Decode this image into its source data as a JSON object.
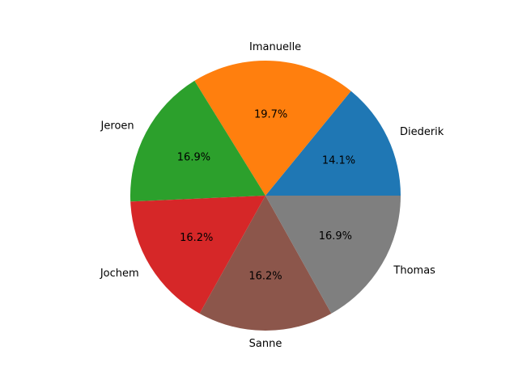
{
  "chart_data": {
    "type": "pie",
    "title": "",
    "start_angle_deg": 0,
    "direction": "counterclockwise",
    "slices": [
      {
        "label": "Diederik",
        "value": 14.1,
        "pct_text": "14.1%",
        "color": "#1f77b4"
      },
      {
        "label": "Imanuelle",
        "value": 19.7,
        "pct_text": "19.7%",
        "color": "#ff7f0e"
      },
      {
        "label": "Jeroen",
        "value": 16.9,
        "pct_text": "16.9%",
        "color": "#2ca02c"
      },
      {
        "label": "Jochem",
        "value": 16.2,
        "pct_text": "16.2%",
        "color": "#d62728"
      },
      {
        "label": "Sanne",
        "value": 16.2,
        "pct_text": "16.2%",
        "color": "#8c564b"
      },
      {
        "label": "Thomas",
        "value": 16.9,
        "pct_text": "16.9%",
        "color": "#7f7f7f"
      }
    ]
  }
}
